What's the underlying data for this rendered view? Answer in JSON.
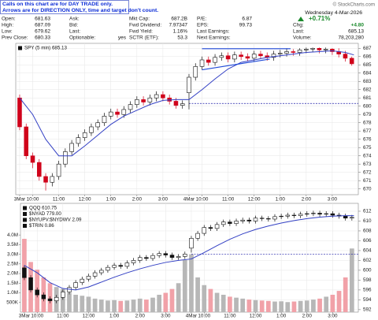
{
  "header": {
    "notice": [
      "Calls on this chart are for DAY TRADE only.",
      "Arrows are for DIRECTION ONLY, time and target don't count."
    ],
    "watermark": "© StockCharts.com",
    "quote": {
      "columns": [
        [
          [
            "Open:",
            "681.63"
          ],
          [
            "High:",
            "687.09"
          ],
          [
            "Low:",
            "679.62"
          ],
          [
            "Prev Close:",
            "680.33"
          ]
        ],
        [
          [
            "Ask:"
          ],
          [
            "Bid:"
          ],
          [
            "Last:"
          ],
          [
            "Optionable:",
            "yes"
          ]
        ],
        [
          [
            "Mkt Cap:",
            "687.2B"
          ],
          [
            "Fwd Dividend:",
            "7.97347"
          ],
          [
            "Fwd Yield:",
            "1.16%"
          ],
          [
            "SCTR (ETF):",
            "53.3"
          ]
        ],
        [
          [
            "P/E:",
            "6.87"
          ],
          [
            "EPS:",
            "99.73"
          ],
          [
            "Last Earnings:"
          ],
          [
            "Next Earnings:"
          ]
        ]
      ],
      "date": "Wednesday 4-Mar-2026",
      "change_pct": "+0.71%",
      "side": [
        [
          "Chg:",
          "+4.80"
        ],
        [
          "Last:",
          "685.13"
        ],
        [
          "Volume:",
          "78,203,280"
        ]
      ]
    }
  },
  "chart_data": [
    {
      "type": "candlestick",
      "legend": [
        "SPY (5 min) 685.13"
      ],
      "up_color": "#111111",
      "down_color": "#d0021b",
      "grid": true,
      "xlim": [
        -0.15,
        13.0
      ],
      "ylim": [
        669.3,
        687.6
      ],
      "xticks": [
        {
          "value": 0,
          "label": "3Mar"
        },
        {
          "value": 0.5,
          "label": "10:00"
        },
        {
          "value": 1.5,
          "label": "11:00"
        },
        {
          "value": 2.5,
          "label": "12:00"
        },
        {
          "value": 3.5,
          "label": "1:00"
        },
        {
          "value": 4.5,
          "label": "2:00"
        },
        {
          "value": 5.5,
          "label": "3:00"
        },
        {
          "value": 6.5,
          "label": "4Mar"
        },
        {
          "value": 7,
          "label": "10:00"
        },
        {
          "value": 8,
          "label": "11:00"
        },
        {
          "value": 9,
          "label": "12:00"
        },
        {
          "value": 10,
          "label": "1:00"
        },
        {
          "value": 11,
          "label": "2:00"
        },
        {
          "value": 12,
          "label": "3:00"
        }
      ],
      "yticks": [
        670,
        671,
        672,
        673,
        674,
        675,
        676,
        677,
        678,
        679,
        680,
        681,
        682,
        683,
        684,
        685,
        686,
        687
      ],
      "x": [
        0,
        0.25,
        0.5,
        0.75,
        1,
        1.25,
        1.5,
        1.75,
        2,
        2.25,
        2.5,
        2.75,
        3,
        3.25,
        3.5,
        3.75,
        4,
        4.25,
        4.5,
        4.75,
        5,
        5.25,
        5.5,
        5.75,
        6,
        6.25,
        6.5,
        6.75,
        7,
        7.25,
        7.5,
        7.75,
        8,
        8.25,
        8.5,
        8.75,
        9,
        9.25,
        9.5,
        9.75,
        10,
        10.25,
        10.5,
        10.75,
        11,
        11.25,
        11.5,
        11.75,
        12,
        12.25,
        12.5,
        12.75
      ],
      "open": [
        681.0,
        677.5,
        674.0,
        673.2,
        671.5,
        670.8,
        671.5,
        673.0,
        674.5,
        675.5,
        676.2,
        676.8,
        677.5,
        678.0,
        678.8,
        679.3,
        679.0,
        679.6,
        680.2,
        680.8,
        680.5,
        681.0,
        681.4,
        681.0,
        680.6,
        680.1,
        681.63,
        683.5,
        684.8,
        685.6,
        685.3,
        685.9,
        686.1,
        685.7,
        686.2,
        686.0,
        685.8,
        686.3,
        686.1,
        685.9,
        686.3,
        686.4,
        686.6,
        686.5,
        686.8,
        686.9,
        687.0,
        686.8,
        686.9,
        686.6,
        686.3,
        685.8
      ],
      "high": [
        681.4,
        677.9,
        674.4,
        673.6,
        671.9,
        671.9,
        673.4,
        674.9,
        675.9,
        676.6,
        677.2,
        677.9,
        678.4,
        679.2,
        679.7,
        679.7,
        680.0,
        680.6,
        681.2,
        681.2,
        681.4,
        681.8,
        681.8,
        681.4,
        681.0,
        680.7,
        683.9,
        685.2,
        686.0,
        686.0,
        686.3,
        686.5,
        686.5,
        686.6,
        686.6,
        686.4,
        686.7,
        686.7,
        686.5,
        686.7,
        686.8,
        687.0,
        686.9,
        687.0,
        687.09,
        687.09,
        687.09,
        687.09,
        687.0,
        687.0,
        686.7,
        686.0
      ],
      "low": [
        677.1,
        673.6,
        672.5,
        671.0,
        669.8,
        670.3,
        671.1,
        672.6,
        674.1,
        675.1,
        675.8,
        676.4,
        677.1,
        677.6,
        678.4,
        678.6,
        678.6,
        679.2,
        679.8,
        680.1,
        680.1,
        680.6,
        680.6,
        680.2,
        679.7,
        679.7,
        679.62,
        683.1,
        684.4,
        684.9,
        684.9,
        685.5,
        685.3,
        685.3,
        685.6,
        685.4,
        685.4,
        685.7,
        685.5,
        685.5,
        685.9,
        686.0,
        686.1,
        686.1,
        686.4,
        686.5,
        686.4,
        686.4,
        686.2,
        685.9,
        685.4,
        684.9
      ],
      "close": [
        677.5,
        674.0,
        673.2,
        671.5,
        670.8,
        671.5,
        673.0,
        674.5,
        675.5,
        676.2,
        676.8,
        677.5,
        678.0,
        678.8,
        679.3,
        679.0,
        679.6,
        680.2,
        680.8,
        680.5,
        681.0,
        681.4,
        681.0,
        680.6,
        680.1,
        680.3,
        683.5,
        684.8,
        685.6,
        685.3,
        685.9,
        686.1,
        685.7,
        686.2,
        686.0,
        685.8,
        686.3,
        686.1,
        685.9,
        686.3,
        686.4,
        686.6,
        686.5,
        686.8,
        686.9,
        687.0,
        686.8,
        686.9,
        686.6,
        686.3,
        685.8,
        685.13
      ],
      "overlays": [
        {
          "color": "#3340c4",
          "x": [
            0,
            0.5,
            1,
            1.5,
            2,
            2.5,
            3,
            3.5,
            4,
            4.5,
            5,
            5.5,
            6,
            6.5,
            7,
            7.5,
            8,
            8.5,
            9,
            9.5,
            10,
            10.5,
            11,
            11.5,
            12,
            12.5,
            12.83
          ],
          "values": [
            681,
            679,
            676,
            674,
            674,
            675.2,
            676.5,
            677.8,
            678.8,
            679.5,
            680.2,
            680.7,
            680.8,
            680.8,
            682,
            683.3,
            684.5,
            685.3,
            685.6,
            685.9,
            686.1,
            686.3,
            686.5,
            686.6,
            686.7,
            686.5,
            686.2
          ]
        }
      ],
      "hlines": [
        {
          "value": 680.33,
          "color": "#1a1aa6"
        }
      ],
      "trendlines": [
        {
          "color": "#1f49d8",
          "x": [
            7.0,
            10.4
          ],
          "values": [
            686.95,
            686.95
          ]
        },
        {
          "color": "#1f49d8",
          "x": [
            7.0,
            9.6
          ],
          "values": [
            684.4,
            685.7
          ]
        }
      ]
    },
    {
      "type": "candlestick",
      "legend": [
        "QQQ 610.75",
        "$NYAD 779.00",
        "$NYUPV:$NYDWV 2.09",
        "$TRIN 0.86"
      ],
      "up_color": "#111111",
      "down_color": "#111111",
      "grid": true,
      "xlim": [
        -0.15,
        13.0
      ],
      "ylim": [
        591.5,
        613.6
      ],
      "xticks": [
        {
          "value": 0,
          "label": "3Mar"
        },
        {
          "value": 0.5,
          "label": "10:00"
        },
        {
          "value": 1.5,
          "label": "11:00"
        },
        {
          "value": 2.5,
          "label": "12:00"
        },
        {
          "value": 3.5,
          "label": "1:00"
        },
        {
          "value": 4.5,
          "label": "2:00"
        },
        {
          "value": 5.5,
          "label": "3:00"
        },
        {
          "value": 6.5,
          "label": "4Mar"
        },
        {
          "value": 7,
          "label": "10:00"
        },
        {
          "value": 8,
          "label": "11:00"
        },
        {
          "value": 9,
          "label": "12:00"
        },
        {
          "value": 10,
          "label": "1:00"
        },
        {
          "value": 11,
          "label": "2:00"
        },
        {
          "value": 12,
          "label": "3:00"
        }
      ],
      "yticks": [
        592,
        594,
        596,
        598,
        600,
        602,
        604,
        606,
        608,
        610,
        612
      ],
      "x": [
        0,
        0.25,
        0.5,
        0.75,
        1,
        1.25,
        1.5,
        1.75,
        2,
        2.25,
        2.5,
        2.75,
        3,
        3.25,
        3.5,
        3.75,
        4,
        4.25,
        4.5,
        4.75,
        5,
        5.25,
        5.5,
        5.75,
        6,
        6.25,
        6.5,
        6.75,
        7,
        7.25,
        7.5,
        7.75,
        8,
        8.25,
        8.5,
        8.75,
        9,
        9.25,
        9.5,
        9.75,
        10,
        10.25,
        10.5,
        10.75,
        11,
        11.25,
        11.5,
        11.75,
        12,
        12.25,
        12.5,
        12.75
      ],
      "open": [
        600.5,
        598.5,
        596.0,
        595.0,
        594.2,
        593.8,
        594.5,
        595.6,
        596.5,
        597.5,
        598.2,
        598.8,
        599.5,
        600.0,
        600.6,
        601.0,
        600.8,
        601.5,
        602.0,
        602.6,
        602.4,
        603.0,
        603.4,
        603.1,
        602.6,
        602.8,
        604.5,
        606.5,
        607.5,
        608.7,
        608.5,
        609.3,
        609.8,
        609.5,
        610.0,
        610.2,
        610.0,
        610.6,
        610.5,
        610.4,
        610.9,
        611.0,
        611.2,
        611.1,
        611.4,
        611.5,
        611.6,
        611.4,
        611.5,
        611.2,
        611.0,
        610.6
      ],
      "high": [
        601.0,
        599.0,
        596.5,
        595.5,
        594.7,
        595.0,
        596.1,
        597.0,
        598.0,
        598.7,
        599.3,
        600.0,
        600.5,
        601.1,
        601.5,
        601.5,
        602.0,
        602.5,
        603.1,
        603.1,
        603.5,
        603.9,
        603.9,
        603.6,
        603.3,
        603.8,
        607.0,
        608.0,
        609.2,
        609.2,
        609.8,
        610.3,
        610.3,
        610.5,
        610.7,
        610.7,
        611.1,
        611.1,
        611.0,
        611.4,
        611.5,
        611.7,
        611.7,
        611.9,
        612.0,
        612.1,
        612.1,
        612.0,
        612.0,
        611.7,
        611.5,
        611.25
      ],
      "low": [
        598.0,
        595.5,
        594.5,
        593.7,
        593.3,
        593.3,
        594.0,
        595.1,
        596.0,
        597.0,
        597.7,
        598.3,
        599.0,
        599.5,
        600.1,
        600.3,
        600.3,
        601.0,
        601.5,
        601.9,
        601.9,
        602.5,
        602.6,
        602.1,
        602.1,
        602.3,
        603.6,
        606.0,
        607.0,
        608.0,
        608.0,
        608.8,
        609.0,
        609.0,
        609.5,
        609.5,
        609.5,
        610.0,
        609.9,
        609.9,
        610.4,
        610.5,
        610.6,
        610.6,
        610.9,
        611.0,
        610.9,
        610.9,
        610.7,
        610.5,
        610.1,
        610.1
      ],
      "close": [
        598.5,
        596.0,
        595.0,
        594.2,
        593.8,
        594.5,
        595.6,
        596.5,
        597.5,
        598.2,
        598.8,
        599.5,
        600.0,
        600.6,
        601.0,
        600.8,
        601.5,
        602.0,
        602.6,
        602.4,
        603.0,
        603.4,
        603.1,
        602.6,
        602.8,
        603.3,
        606.5,
        607.5,
        608.7,
        608.5,
        609.3,
        609.8,
        609.5,
        610.0,
        610.2,
        610.0,
        610.6,
        610.5,
        610.4,
        610.9,
        611.0,
        611.2,
        611.1,
        611.4,
        611.5,
        611.6,
        611.4,
        611.5,
        611.2,
        611.0,
        610.6,
        610.75
      ],
      "volume_values": [
        3800000,
        2600000,
        2200000,
        1800000,
        1500000,
        1300000,
        1200000,
        1000000,
        900000,
        850000,
        800000,
        700000,
        650000,
        600000,
        620000,
        580000,
        600000,
        650000,
        700000,
        650000,
        750000,
        900000,
        1000000,
        1200000,
        1500000,
        2700000,
        3000000,
        1800000,
        1400000,
        1200000,
        1000000,
        900000,
        800000,
        750000,
        700000,
        650000,
        620000,
        600000,
        580000,
        550000,
        560000,
        520000,
        550000,
        580000,
        600000,
        650000,
        700000,
        800000,
        900000,
        1100000,
        1800000,
        3300000
      ],
      "volume_up_color": "#b7b7b7",
      "volume_down_color": "#f1a1a8",
      "volume_ylim": [
        0,
        5640000
      ],
      "volume_yticks": [
        {
          "value": 4000000,
          "label": "4.0M"
        },
        {
          "value": 3500000,
          "label": "3.5M"
        },
        {
          "value": 3000000,
          "label": "3.0M"
        },
        {
          "value": 2500000,
          "label": "2.5M"
        },
        {
          "value": 2000000,
          "label": "2.0M"
        },
        {
          "value": 1500000,
          "label": "1.5M"
        },
        {
          "value": 1000000,
          "label": "1.0M"
        },
        {
          "value": 500000,
          "label": "500K"
        }
      ],
      "overlays": [
        {
          "color": "#3340c4",
          "x": [
            0,
            0.5,
            1,
            1.5,
            2,
            2.5,
            3,
            3.5,
            4,
            4.5,
            5,
            5.5,
            6,
            6.5,
            7,
            7.5,
            8,
            8.5,
            9,
            9.5,
            10,
            10.5,
            11,
            11.5,
            12,
            12.5,
            12.83
          ],
          "values": [
            601,
            599.5,
            597.5,
            596.3,
            596,
            596.6,
            597.6,
            598.6,
            599.5,
            600.3,
            601,
            601.6,
            602,
            602.3,
            603.6,
            605,
            606.3,
            607.4,
            608.3,
            609,
            609.6,
            610.1,
            610.5,
            610.8,
            611,
            611.1,
            611.1
          ]
        }
      ],
      "hlines": [
        {
          "value": 603.3,
          "color": "#1a1aa6"
        }
      ]
    }
  ]
}
